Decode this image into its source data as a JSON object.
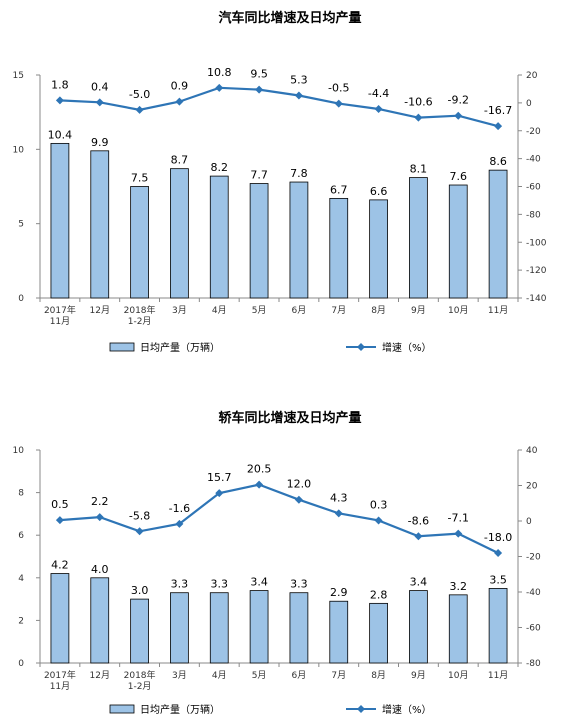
{
  "chart_data": [
    {
      "type": "bar",
      "title": "汽车同比增速及日均产量",
      "categories": [
        [
          "2017年",
          "11月"
        ],
        [
          "12月"
        ],
        [
          "2018年",
          "1-2月"
        ],
        [
          "3月"
        ],
        [
          "4月"
        ],
        [
          "5月"
        ],
        [
          "6月"
        ],
        [
          "7月"
        ],
        [
          "8月"
        ],
        [
          "9月"
        ],
        [
          "10月"
        ],
        [
          "11月"
        ]
      ],
      "series": [
        {
          "name": "日均产量（万辆）",
          "type": "bar",
          "axis": "left",
          "color": "#9dc3e6",
          "values": [
            10.4,
            9.9,
            7.5,
            8.7,
            8.2,
            7.7,
            7.8,
            6.7,
            6.6,
            8.1,
            7.6,
            8.6
          ]
        },
        {
          "name": "增速（%）",
          "type": "line",
          "axis": "right",
          "color": "#2e75b6",
          "values": [
            1.8,
            0.4,
            -5.0,
            0.9,
            10.8,
            9.5,
            5.3,
            -0.5,
            -4.4,
            -10.6,
            -9.2,
            -16.7
          ]
        }
      ],
      "bar_labels": [
        "10.4",
        "9.9",
        "7.5",
        "8.7",
        "8.2",
        "7.7",
        "7.8",
        "6.7",
        "6.6",
        "8.1",
        "7.6",
        "8.6"
      ],
      "line_labels": [
        "1.8",
        "0.4",
        "-5.0",
        "0.9",
        "10.8",
        "9.5",
        "5.3",
        "-0.5",
        "-4.4",
        "-10.6",
        "-9.2",
        "-16.7"
      ],
      "ylim_left": [
        0,
        15
      ],
      "yticks_left": [
        0,
        5,
        10,
        15
      ],
      "ylim_right": [
        -140,
        20
      ],
      "yticks_right": [
        -140,
        -120,
        -100,
        -80,
        -60,
        -40,
        -20,
        0,
        20
      ],
      "grid": false,
      "legend": "bottom"
    },
    {
      "type": "bar",
      "title": "轿车同比增速及日均产量",
      "categories": [
        [
          "2017年",
          "11月"
        ],
        [
          "12月"
        ],
        [
          "2018年",
          "1-2月"
        ],
        [
          "3月"
        ],
        [
          "4月"
        ],
        [
          "5月"
        ],
        [
          "6月"
        ],
        [
          "7月"
        ],
        [
          "8月"
        ],
        [
          "9月"
        ],
        [
          "10月"
        ],
        [
          "11月"
        ]
      ],
      "series": [
        {
          "name": "日均产量（万辆）",
          "type": "bar",
          "axis": "left",
          "color": "#9dc3e6",
          "values": [
            4.2,
            4.0,
            3.0,
            3.3,
            3.3,
            3.4,
            3.3,
            2.9,
            2.8,
            3.4,
            3.2,
            3.5
          ]
        },
        {
          "name": "增速（%）",
          "type": "line",
          "axis": "right",
          "color": "#2e75b6",
          "values": [
            0.5,
            2.2,
            -5.8,
            -1.6,
            15.7,
            20.5,
            12.0,
            4.3,
            0.3,
            -8.6,
            -7.1,
            -18.0
          ]
        }
      ],
      "bar_labels": [
        "4.2",
        "4.0",
        "3.0",
        "3.3",
        "3.3",
        "3.4",
        "3.3",
        "2.9",
        "2.8",
        "3.4",
        "3.2",
        "3.5"
      ],
      "line_labels": [
        "0.5",
        "2.2",
        "-5.8",
        "-1.6",
        "15.7",
        "20.5",
        "12.0",
        "4.3",
        "0.3",
        "-8.6",
        "-7.1",
        "-18.0"
      ],
      "ylim_left": [
        0,
        10
      ],
      "yticks_left": [
        0,
        2,
        4,
        6,
        8,
        10
      ],
      "ylim_right": [
        -80,
        40
      ],
      "yticks_right": [
        -80,
        -60,
        -40,
        -20,
        0,
        20,
        40
      ],
      "grid": false,
      "legend": "bottom"
    }
  ]
}
